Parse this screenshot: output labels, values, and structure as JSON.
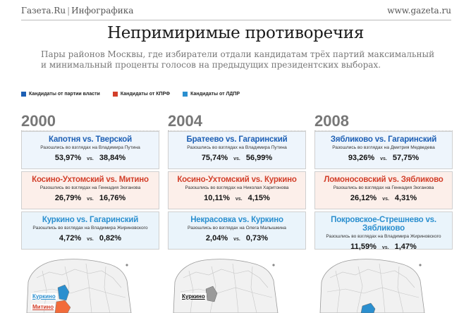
{
  "header": {
    "brand": "Газета.Ru",
    "section": "Инфографика",
    "site": "www.gazeta.ru"
  },
  "title": "Непримиримые противоречия",
  "subtitle_lines": [
    "Пары районов Москвы, где избиратели отдали кандидатам трёх партий максимальный",
    "и минимальный проценты голосов на предыдущих президентских выборах."
  ],
  "legend": [
    {
      "label": "Кандидаты от партии власти",
      "color": "#1d5fb4"
    },
    {
      "label": "Кандидаты от КПРФ",
      "color": "#d23f2a"
    },
    {
      "label": "Кандидаты от ЛДПР",
      "color": "#2b8fcf"
    }
  ],
  "vs_label": "vs.",
  "years": [
    {
      "year": "2000",
      "cards": [
        {
          "pair": "Капотня vs. Тверской",
          "desc": "Разошлись во взглядах на Владимира Путина",
          "a": "53,97%",
          "b": "38,84%",
          "party": "blue"
        },
        {
          "pair": "Косино-Ухтомский vs. Митино",
          "desc": "Разошлись во взглядах на Геннадия Зюганова",
          "a": "26,79%",
          "b": "16,76%",
          "party": "red"
        },
        {
          "pair": "Куркино vs. Гагаринский",
          "desc": "Разошлись во взглядах на Владимира Жириновского",
          "a": "4,72%",
          "b": "0,82%",
          "party": "cyan"
        }
      ],
      "map_labels": [
        "Куркино",
        "Митино"
      ]
    },
    {
      "year": "2004",
      "cards": [
        {
          "pair": "Братеево vs. Гагаринский",
          "desc": "Разошлись во взглядах на Владимира Путина",
          "a": "75,74%",
          "b": "56,99%",
          "party": "blue"
        },
        {
          "pair": "Косино-Ухтомский vs. Куркино",
          "desc": "Разошлись во взглядах на Николая Харитонова",
          "a": "10,11%",
          "b": "4,15%",
          "party": "red"
        },
        {
          "pair": "Некрасовка vs. Куркино",
          "desc": "Разошлись во взглядах на Олега Малышкина",
          "a": "2,04%",
          "b": "0,73%",
          "party": "cyan"
        }
      ],
      "map_labels": [
        "Куркино"
      ]
    },
    {
      "year": "2008",
      "cards": [
        {
          "pair": "Зябликово vs. Гагаринский",
          "desc": "Разошлись во взглядах на Дмитрия Медведева",
          "a": "93,26%",
          "b": "57,75%",
          "party": "blue"
        },
        {
          "pair": "Ломоносовский vs. Зябликово",
          "desc": "Разошлись во взглядах на Геннадия Зюганова",
          "a": "26,12%",
          "b": "4,31%",
          "party": "red"
        },
        {
          "pair": "Покровское-Стрешнево vs. Зябликово",
          "desc": "Разошлись во взглядах на Владимира Жириновского",
          "a": "11,59%",
          "b": "1,47%",
          "party": "cyan"
        }
      ],
      "map_labels": []
    }
  ]
}
